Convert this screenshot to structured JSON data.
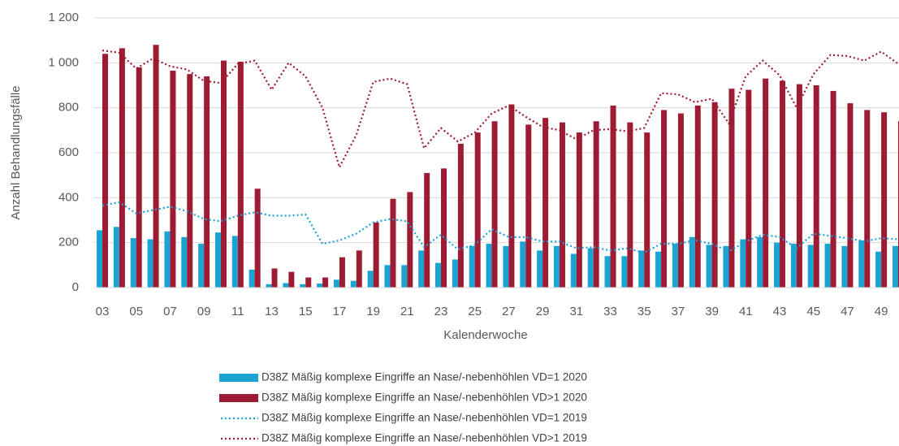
{
  "chart_data": {
    "type": "bar",
    "x_label": "Kalenderwoche",
    "y_label": "Anzahl Behandlungsfälle",
    "categories": [
      "03",
      null,
      "05",
      null,
      "07",
      null,
      "09",
      null,
      "11",
      null,
      "13",
      null,
      "15",
      null,
      "17",
      null,
      "19",
      null,
      "21",
      null,
      "23",
      null,
      "25",
      null,
      "27",
      null,
      "29",
      null,
      "31",
      null,
      "33",
      null,
      "35",
      null,
      "37",
      null,
      "39",
      null,
      "41",
      null,
      "43",
      null,
      "45",
      null,
      "47",
      null,
      "49",
      null
    ],
    "ylim": [
      0,
      1200
    ],
    "yticks": [
      0,
      200,
      400,
      600,
      800,
      {
        "value": 1000,
        "label": "1 000"
      },
      {
        "value": 1200,
        "label": "1 200"
      }
    ],
    "grid": true,
    "legend": "bottom",
    "series": [
      {
        "name": "D38Z Mäßig komplexe Eingriffe an Nase/-nebenhöhlen VD=1 2020",
        "type": "bar",
        "color": "#1aa3d3",
        "values": [
          255,
          270,
          220,
          215,
          250,
          225,
          195,
          245,
          230,
          80,
          15,
          20,
          15,
          18,
          35,
          30,
          75,
          100,
          100,
          165,
          110,
          125,
          185,
          195,
          185,
          205,
          165,
          185,
          150,
          175,
          140,
          140,
          165,
          160,
          195,
          225,
          190,
          185,
          215,
          225,
          200,
          195,
          190,
          195,
          185,
          210,
          160,
          185
        ]
      },
      {
        "name": "D38Z Mäßig komplexe Eingriffe an Nase/-nebenhöhlen VD>1 2020",
        "type": "bar",
        "color": "#9e1b34",
        "values": [
          1040,
          1065,
          980,
          1080,
          965,
          950,
          940,
          1010,
          1005,
          440,
          85,
          70,
          45,
          45,
          135,
          165,
          290,
          395,
          425,
          510,
          530,
          640,
          690,
          740,
          815,
          725,
          755,
          735,
          690,
          740,
          810,
          735,
          690,
          790,
          775,
          810,
          825,
          885,
          880,
          930,
          920,
          905,
          900,
          875,
          820,
          790,
          780,
          740
        ]
      },
      {
        "name": "D38Z Mäßig komplexe Eingriffe an Nase/-nebenhöhlen VD=1 2019",
        "type": "line",
        "color": "#1aa3d3",
        "values": [
          365,
          380,
          330,
          345,
          360,
          340,
          305,
          295,
          320,
          335,
          320,
          320,
          325,
          195,
          210,
          240,
          290,
          305,
          295,
          180,
          235,
          170,
          190,
          260,
          225,
          225,
          205,
          205,
          175,
          180,
          165,
          175,
          155,
          195,
          195,
          210,
          195,
          160,
          205,
          235,
          225,
          175,
          240,
          230,
          220,
          205,
          220,
          215
        ]
      },
      {
        "name": "D38Z Mäßig komplexe Eingriffe an Nase/-nebenhöhlen VD>1 2019",
        "type": "line",
        "color": "#9e1b34",
        "values": [
          1055,
          1045,
          975,
          1020,
          985,
          970,
          920,
          910,
          995,
          1010,
          880,
          1000,
          940,
          800,
          535,
          680,
          915,
          930,
          905,
          620,
          710,
          650,
          690,
          775,
          810,
          760,
          715,
          700,
          660,
          700,
          705,
          695,
          710,
          865,
          860,
          825,
          840,
          730,
          940,
          1010,
          945,
          800,
          950,
          1035,
          1030,
          1010,
          1050,
          995
        ]
      }
    ]
  }
}
